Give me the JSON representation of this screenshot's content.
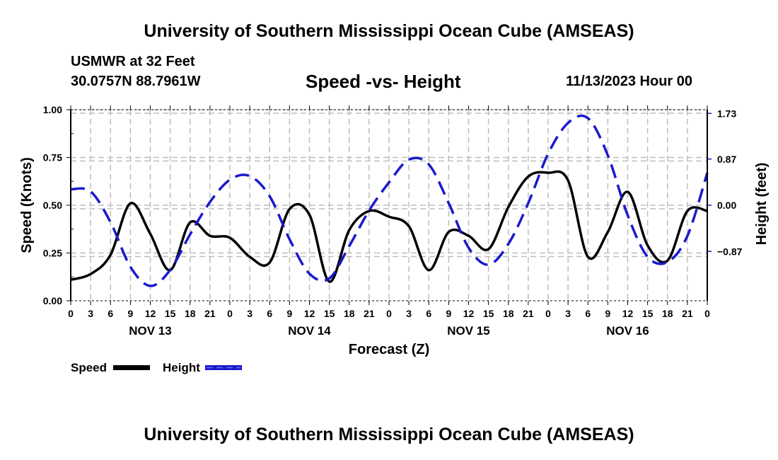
{
  "header": {
    "main_title": "University of Southern Mississippi Ocean Cube (AMSEAS)",
    "station": "USMWR at 32 Feet",
    "coords": "30.0757N  88.7961W",
    "subtitle": "Speed -vs- Height",
    "datetime": "11/13/2023 Hour 00"
  },
  "footer": {
    "title": "University of Southern Mississippi Ocean Cube (AMSEAS)"
  },
  "chart_data": {
    "type": "line",
    "title": "Speed -vs- Height",
    "xlabel": "Forecast (Z)",
    "ylabel": "Speed (Knots)",
    "y2label": "Height (feet)",
    "x_hours": [
      0,
      3,
      6,
      9,
      12,
      15,
      18,
      21,
      24,
      27,
      30,
      33,
      36,
      39,
      42,
      45,
      48,
      51,
      54,
      57,
      60,
      63,
      66,
      69,
      72,
      75,
      78,
      81,
      84,
      87,
      90,
      93,
      96
    ],
    "x_tick_labels": [
      "0",
      "3",
      "6",
      "9",
      "12",
      "15",
      "18",
      "21",
      "0",
      "3",
      "6",
      "9",
      "12",
      "15",
      "18",
      "21",
      "0",
      "3",
      "6",
      "9",
      "12",
      "15",
      "18",
      "21",
      "0",
      "3",
      "6",
      "9",
      "12",
      "15",
      "18",
      "21",
      "0"
    ],
    "day_labels": [
      {
        "label": "NOV 13",
        "center_hour": 12
      },
      {
        "label": "NOV 14",
        "center_hour": 36
      },
      {
        "label": "NOV 15",
        "center_hour": 60
      },
      {
        "label": "NOV 16",
        "center_hour": 84
      }
    ],
    "xlim": [
      0,
      96
    ],
    "ylim": [
      0,
      1.0
    ],
    "y_ticks": [
      0,
      0.25,
      0.5,
      0.75,
      1.0
    ],
    "y_tick_labels": [
      "0.00",
      "0.25",
      "0.50",
      "0.75",
      "1.00"
    ],
    "y2lim": [
      -1.8,
      1.8
    ],
    "y2_ticks": [
      -0.87,
      0.0,
      0.87,
      1.73
    ],
    "y2_tick_labels": [
      "−0.87",
      "0.00",
      "0.87",
      "1.73"
    ],
    "grid": true,
    "legend_placement": "bottom-left",
    "series": [
      {
        "name": "Speed",
        "axis": "left",
        "color": "#000000",
        "style": "solid",
        "values": [
          0.11,
          0.14,
          0.24,
          0.51,
          0.35,
          0.16,
          0.41,
          0.34,
          0.33,
          0.23,
          0.2,
          0.48,
          0.45,
          0.1,
          0.37,
          0.47,
          0.44,
          0.39,
          0.16,
          0.36,
          0.34,
          0.27,
          0.49,
          0.65,
          0.67,
          0.63,
          0.23,
          0.36,
          0.57,
          0.29,
          0.21,
          0.47,
          0.47
        ]
      },
      {
        "name": "Height",
        "axis": "right",
        "color": "#0000cc",
        "style": "dashed",
        "values": [
          0.3,
          0.26,
          -0.32,
          -1.16,
          -1.52,
          -1.22,
          -0.55,
          0.06,
          0.48,
          0.55,
          0.17,
          -0.64,
          -1.29,
          -1.38,
          -0.77,
          -0.1,
          0.43,
          0.86,
          0.77,
          0.04,
          -0.8,
          -1.12,
          -0.73,
          0.04,
          0.97,
          1.55,
          1.64,
          0.94,
          -0.19,
          -0.97,
          -1.07,
          -0.58,
          0.61
        ]
      }
    ]
  }
}
